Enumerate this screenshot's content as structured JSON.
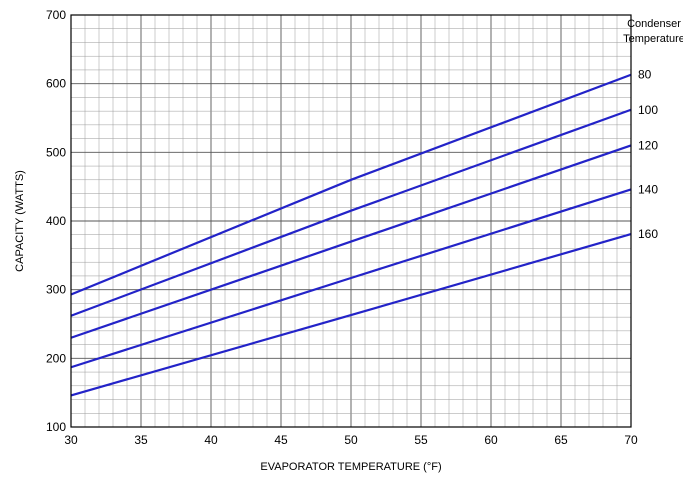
{
  "chart_data": {
    "type": "line",
    "title": "",
    "xlabel": "EVAPORATOR TEMPERATURE (°F)",
    "ylabel": "CAPACITY (WATTS)",
    "xlim": [
      30,
      70
    ],
    "ylim": [
      100,
      700
    ],
    "xticks": [
      30,
      35,
      40,
      45,
      50,
      55,
      60,
      65,
      70
    ],
    "yticks": [
      100,
      200,
      300,
      400,
      500,
      600,
      700
    ],
    "x_minor_step": 1,
    "y_minor_step": 20,
    "grid": true,
    "line_color": "#2323c8",
    "legend_title_lines": [
      "Condenser",
      "Temperature"
    ],
    "legend_placement": "right",
    "series": [
      {
        "name": "80",
        "x": [
          30,
          50,
          70
        ],
        "values": [
          293,
          460,
          613
        ]
      },
      {
        "name": "100",
        "x": [
          30,
          50,
          70
        ],
        "values": [
          262,
          415,
          562
        ]
      },
      {
        "name": "120",
        "x": [
          30,
          50,
          70
        ],
        "values": [
          230,
          370,
          510
        ]
      },
      {
        "name": "140",
        "x": [
          30,
          50,
          70
        ],
        "values": [
          187,
          317,
          446
        ]
      },
      {
        "name": "160",
        "x": [
          30,
          50,
          70
        ],
        "values": [
          146,
          263,
          381
        ]
      }
    ]
  }
}
